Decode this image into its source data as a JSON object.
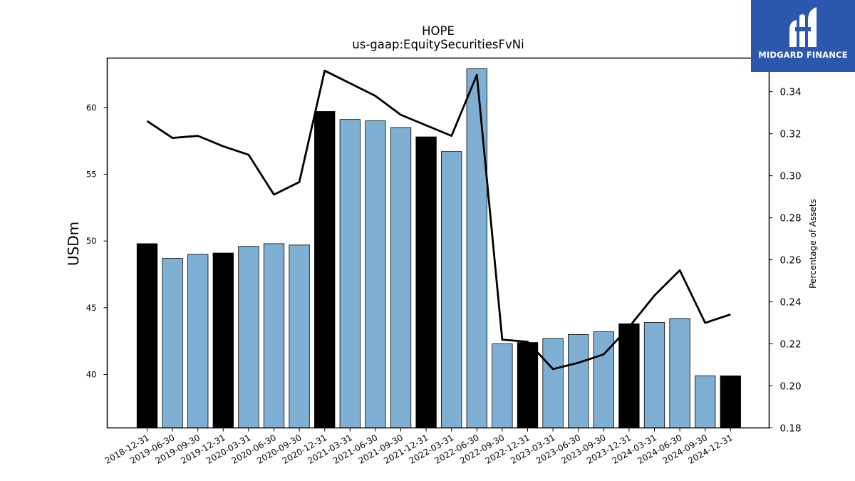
{
  "chart_data": {
    "type": "bar+line",
    "title": "HOPE",
    "subtitle": "us-gaap:EquitySecuritiesFvNi",
    "ylabel": "USDm",
    "y2label": "Percentage of Assets",
    "ylim": [
      36.0,
      63.7
    ],
    "y2lim": [
      0.18,
      0.356
    ],
    "yticks": [
      40,
      45,
      50,
      55,
      60
    ],
    "y2ticks": [
      "0.18",
      "0.20",
      "0.22",
      "0.24",
      "0.26",
      "0.28",
      "0.30",
      "0.32",
      "0.34"
    ],
    "categories": [
      "2018-12-31",
      "2019-06-30",
      "2019-09-30",
      "2019-12-31",
      "2020-03-31",
      "2020-06-30",
      "2020-09-30",
      "2020-12-31",
      "2021-03-31",
      "2021-06-30",
      "2021-09-30",
      "2021-12-31",
      "2022-03-31",
      "2022-06-30",
      "2022-09-30",
      "2022-12-31",
      "2023-03-31",
      "2023-06-30",
      "2023-09-30",
      "2023-12-31",
      "2024-03-31",
      "2024-06-30",
      "2024-09-30",
      "2024-12-31"
    ],
    "bars": {
      "values": [
        49.8,
        48.7,
        49.0,
        49.1,
        49.6,
        49.8,
        49.7,
        59.7,
        59.1,
        59.0,
        58.5,
        57.8,
        56.7,
        62.9,
        42.3,
        42.4,
        42.7,
        43.0,
        43.2,
        43.8,
        43.9,
        44.2,
        39.9,
        39.9
      ],
      "highlight": [
        true,
        false,
        false,
        true,
        false,
        false,
        false,
        true,
        false,
        false,
        false,
        true,
        false,
        false,
        false,
        true,
        false,
        false,
        false,
        true,
        false,
        false,
        false,
        true
      ],
      "color": "#7fb0d4",
      "highlight_color": "#000000"
    },
    "line": {
      "values": [
        0.326,
        0.318,
        0.319,
        0.314,
        0.31,
        0.291,
        0.297,
        0.35,
        0.344,
        0.338,
        0.329,
        0.324,
        0.319,
        0.348,
        0.222,
        0.221,
        0.208,
        0.211,
        0.215,
        0.228,
        0.243,
        0.255,
        0.23,
        0.234
      ],
      "color": "#000000"
    }
  },
  "logo": {
    "text": "MIDGARD FINANCE"
  }
}
